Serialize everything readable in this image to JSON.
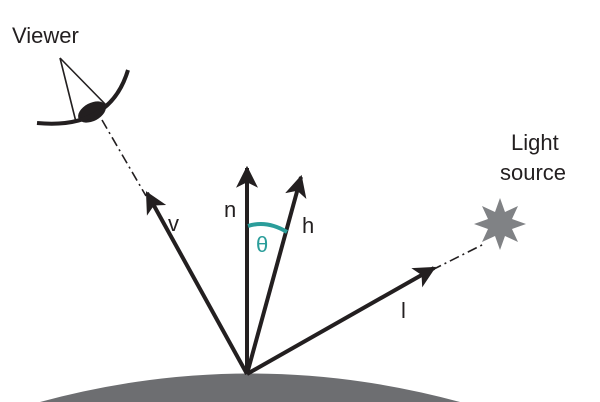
{
  "labels": {
    "viewer": "Viewer",
    "light_line1": "Light",
    "light_line2": "source",
    "v": "v",
    "n": "n",
    "h": "h",
    "l": "l",
    "theta": "θ"
  },
  "colors": {
    "ink": "#231f20",
    "surface": "#6d6e71",
    "angle": "#2a9d9a",
    "star": "#808285"
  }
}
